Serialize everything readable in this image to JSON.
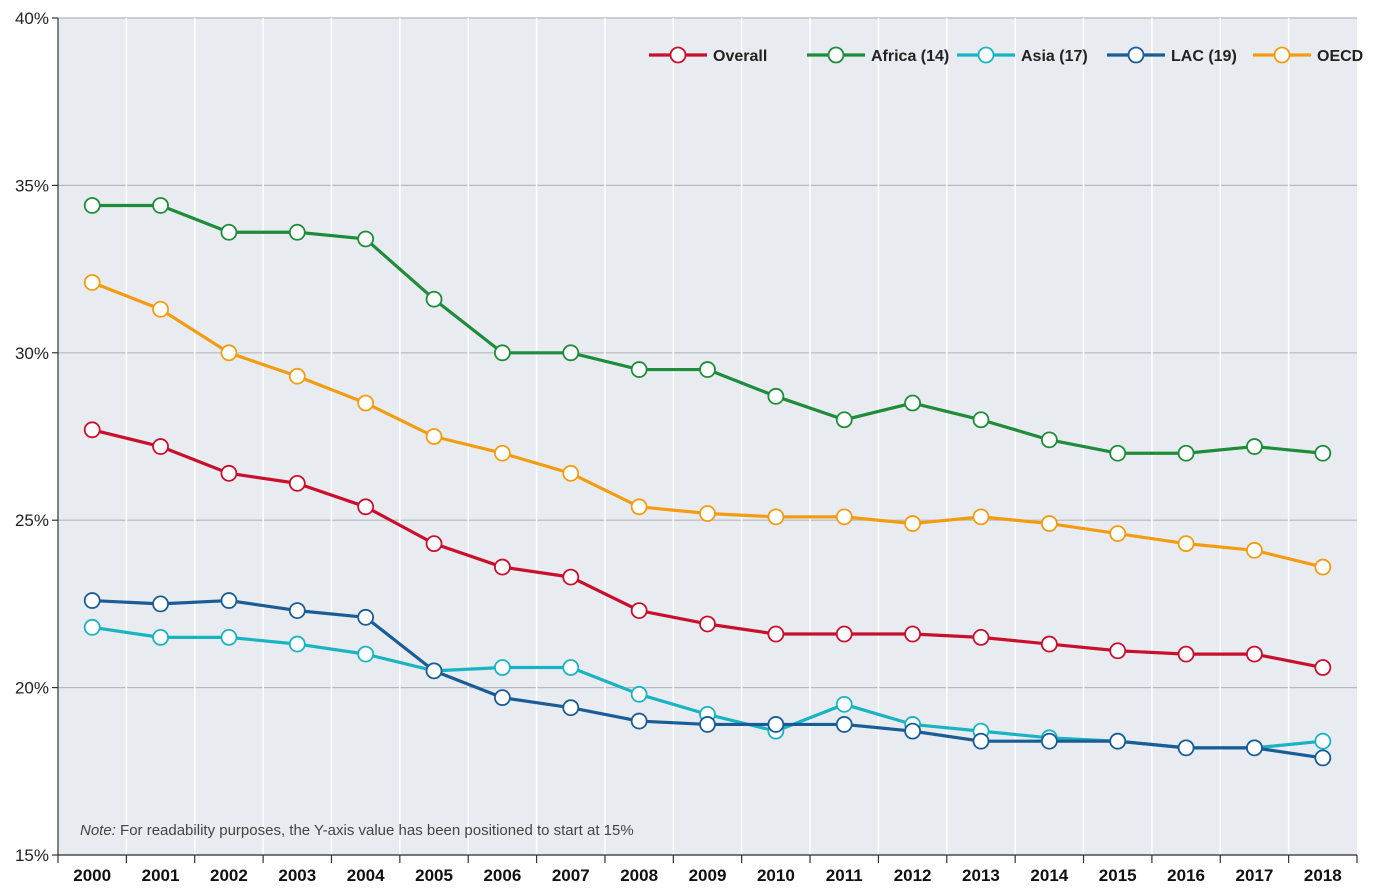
{
  "chart_data": {
    "type": "line",
    "title": "",
    "xlabel": "",
    "ylabel": "",
    "x": [
      "2000",
      "2001",
      "2002",
      "2003",
      "2004",
      "2005",
      "2006",
      "2007",
      "2008",
      "2009",
      "2010",
      "2011",
      "2012",
      "2013",
      "2014",
      "2015",
      "2016",
      "2017",
      "2018"
    ],
    "ylim": [
      15,
      40
    ],
    "yticks": [
      15,
      20,
      25,
      30,
      35,
      40
    ],
    "ytick_labels": [
      "15%",
      "20%",
      "25%",
      "30%",
      "35%",
      "40%"
    ],
    "grid": true,
    "legend_position": "top-right",
    "series": [
      {
        "name": "Overall",
        "color": "#c8102e",
        "values": [
          27.7,
          27.2,
          26.4,
          26.1,
          25.4,
          24.3,
          23.6,
          23.3,
          22.3,
          21.9,
          21.6,
          21.6,
          21.6,
          21.5,
          21.3,
          21.1,
          21.0,
          21.0,
          20.6
        ]
      },
      {
        "name": "Africa (14)",
        "color": "#1e8c3a",
        "values": [
          34.4,
          34.4,
          33.6,
          33.6,
          33.4,
          31.6,
          30.0,
          30.0,
          29.5,
          29.5,
          28.7,
          28.0,
          28.5,
          28.0,
          27.4,
          27.0,
          27.0,
          27.2,
          27.0
        ]
      },
      {
        "name": "Asia (17)",
        "color": "#1ab3c2",
        "values": [
          21.8,
          21.5,
          21.5,
          21.3,
          21.0,
          20.5,
          20.6,
          20.6,
          19.8,
          19.2,
          18.7,
          19.5,
          18.9,
          18.7,
          18.5,
          18.4,
          18.2,
          18.2,
          18.4
        ]
      },
      {
        "name": "LAC (19)",
        "color": "#1a5c96",
        "values": [
          22.6,
          22.5,
          22.6,
          22.3,
          22.1,
          20.5,
          19.7,
          19.4,
          19.0,
          18.9,
          18.9,
          18.9,
          18.7,
          18.4,
          18.4,
          18.4,
          18.2,
          18.2,
          17.9
        ]
      },
      {
        "name": "OECD",
        "color": "#f39c12",
        "values": [
          32.1,
          31.3,
          30.0,
          29.3,
          28.5,
          27.5,
          27.0,
          26.4,
          25.4,
          25.2,
          25.1,
          25.1,
          24.9,
          25.1,
          24.9,
          24.6,
          24.3,
          24.1,
          23.6
        ]
      }
    ],
    "note_label": "Note:",
    "note_text": " For readability purposes, the Y-axis value has been positioned to start at 15%"
  },
  "colors": {
    "plot_background": "#e8ecf0",
    "gridline": "#ffffff",
    "axis": "#333333",
    "marker_fill": "#ffffff"
  }
}
